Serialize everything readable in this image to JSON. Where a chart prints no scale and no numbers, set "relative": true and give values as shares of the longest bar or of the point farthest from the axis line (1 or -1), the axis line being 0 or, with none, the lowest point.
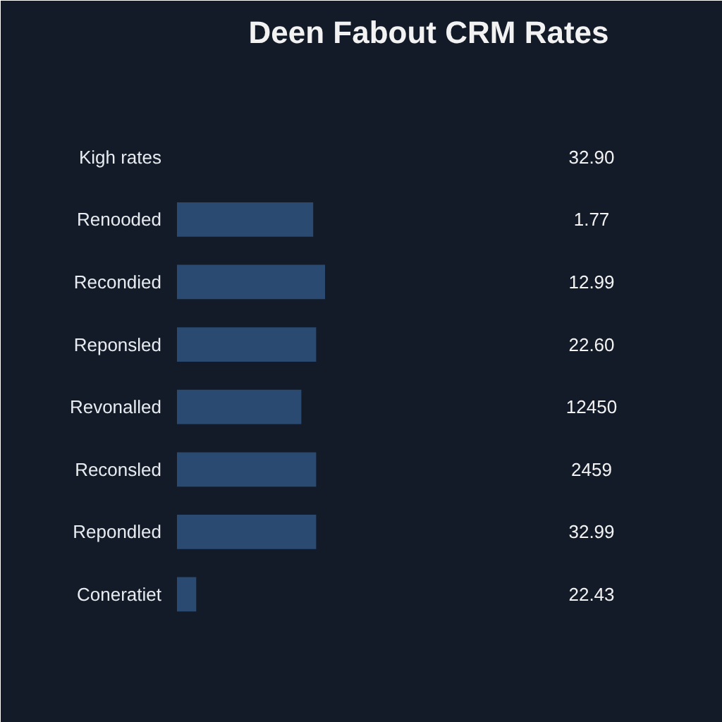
{
  "chart_data": {
    "type": "bar",
    "orientation": "horizontal",
    "relative": true,
    "title": "Deen Fabout CRM Rates",
    "categories": [
      "Kigh rates",
      "Renooded",
      "Recondied",
      "Reponsled",
      "Revonalled",
      "Reconsled",
      "Repondled",
      "Coneratiet"
    ],
    "values": [
      null,
      0.92,
      1,
      0.94,
      0.84,
      0.94,
      0.94,
      0.13
    ],
    "annotations": [
      "32.90",
      "1.77",
      "12.99",
      "22.60",
      "12450",
      "2459",
      "32.99",
      "22.43"
    ],
    "color": "#2a4a72",
    "grid": false
  }
}
